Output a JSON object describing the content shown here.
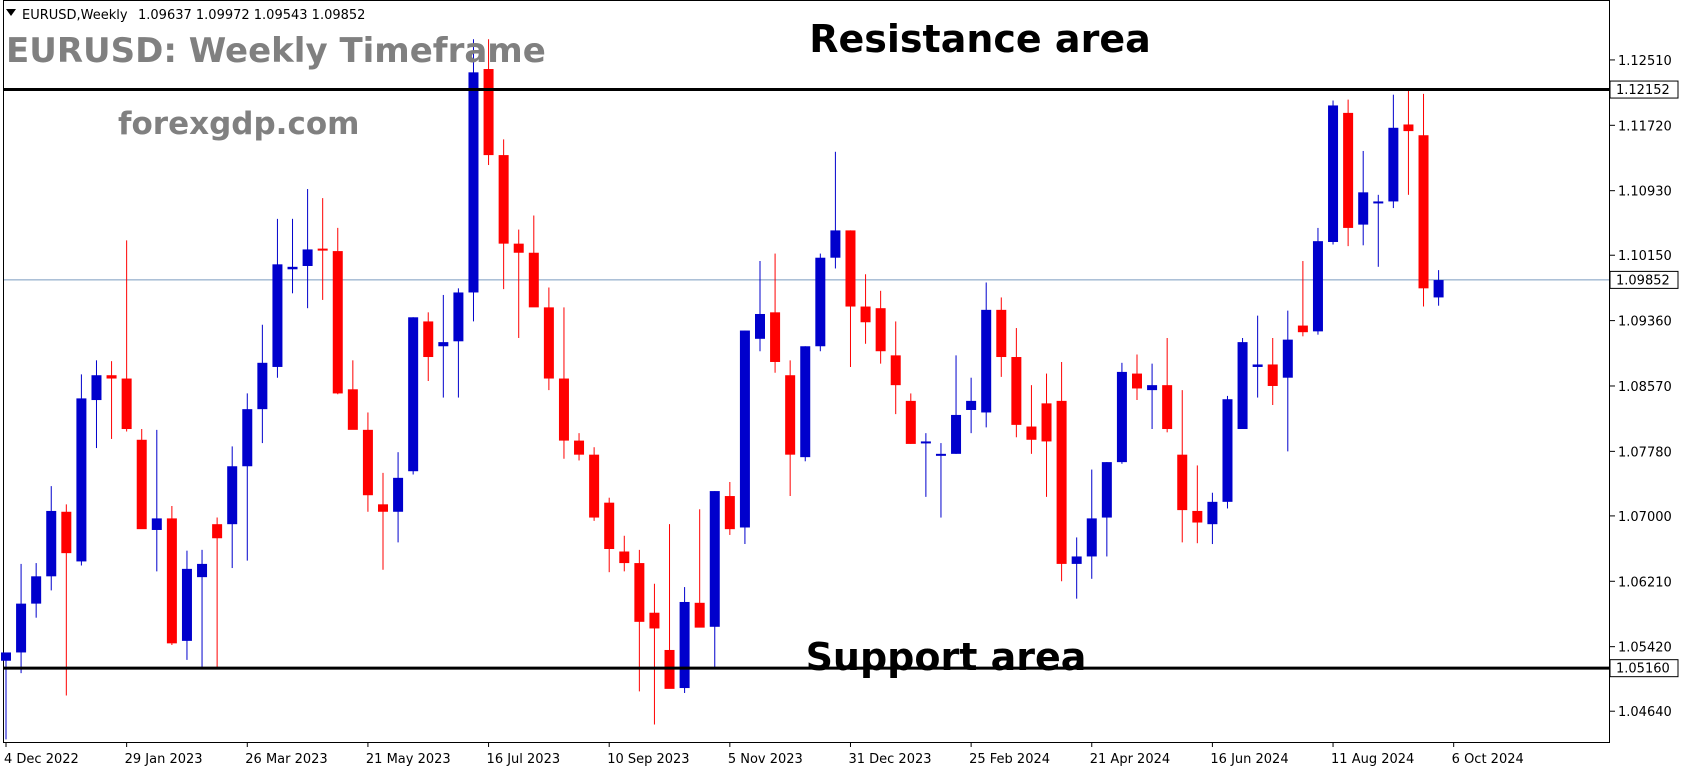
{
  "header": {
    "symbol_info": "EURUSD,Weekly",
    "ohlc_text": "1.09637 1.09972 1.09543 1.09852",
    "title": "EURUSD: Weekly Timeframe",
    "watermark": "forexgdp.com"
  },
  "annotations": {
    "resistance_label": "Resistance area",
    "support_label": "Support area"
  },
  "levels": {
    "resistance_value": "1.12152",
    "support_value": "1.05160",
    "current_value": "1.09852"
  },
  "colors": {
    "bull": "#0000cc",
    "bear": "#ff0000",
    "level_line": "#000000",
    "current_line": "#7a9bbf"
  },
  "chart_data": {
    "type": "candlestick",
    "title": "EURUSD: Weekly Timeframe",
    "symbol": "EURUSD",
    "timeframe": "Weekly",
    "ylim": [
      1.0428,
      1.1321
    ],
    "y_ticks": [
      "1.12510",
      "1.11720",
      "1.10930",
      "1.10150",
      "1.09360",
      "1.08570",
      "1.07780",
      "1.07000",
      "1.06210",
      "1.05420",
      "1.04640"
    ],
    "x_ticks": [
      {
        "label": "4 Dec 2022",
        "index": 0
      },
      {
        "label": "29 Jan 2023",
        "index": 8
      },
      {
        "label": "26 Mar 2023",
        "index": 16
      },
      {
        "label": "21 May 2023",
        "index": 24
      },
      {
        "label": "16 Jul 2023",
        "index": 32
      },
      {
        "label": "10 Sep 2023",
        "index": 40
      },
      {
        "label": "5 Nov 2023",
        "index": 48
      },
      {
        "label": "31 Dec 2023",
        "index": 56
      },
      {
        "label": "25 Feb 2024",
        "index": 64
      },
      {
        "label": "21 Apr 2024",
        "index": 72
      },
      {
        "label": "16 Jun 2024",
        "index": 80
      },
      {
        "label": "11 Aug 2024",
        "index": 88
      },
      {
        "label": "6 Oct 2024",
        "index": 96
      }
    ],
    "horizontal_levels": [
      {
        "name": "Resistance area",
        "value": 1.12152
      },
      {
        "name": "Support area",
        "value": 1.0516
      }
    ],
    "last_price": 1.09852,
    "candles": [
      {
        "o": 1.0525,
        "h": 1.0535,
        "l": 1.043,
        "c": 1.0535
      },
      {
        "o": 1.0535,
        "h": 1.0642,
        "l": 1.051,
        "c": 1.0594
      },
      {
        "o": 1.0594,
        "h": 1.0643,
        "l": 1.0577,
        "c": 1.0627
      },
      {
        "o": 1.0627,
        "h": 1.0736,
        "l": 1.061,
        "c": 1.0706
      },
      {
        "o": 1.0705,
        "h": 1.0714,
        "l": 1.0483,
        "c": 1.0655
      },
      {
        "o": 1.0645,
        "h": 1.0871,
        "l": 1.064,
        "c": 1.0842
      },
      {
        "o": 1.084,
        "h": 1.0888,
        "l": 1.0782,
        "c": 1.087
      },
      {
        "o": 1.087,
        "h": 1.0887,
        "l": 1.0793,
        "c": 1.0866
      },
      {
        "o": 1.0866,
        "h": 1.1033,
        "l": 1.0802,
        "c": 1.0805
      },
      {
        "o": 1.0792,
        "h": 1.0805,
        "l": 1.0685,
        "c": 1.0684
      },
      {
        "o": 1.0683,
        "h": 1.0804,
        "l": 1.0633,
        "c": 1.0697
      },
      {
        "o": 1.0697,
        "h": 1.0712,
        "l": 1.0544,
        "c": 1.0546
      },
      {
        "o": 1.0549,
        "h": 1.0658,
        "l": 1.0526,
        "c": 1.0636
      },
      {
        "o": 1.0626,
        "h": 1.0659,
        "l": 1.0517,
        "c": 1.0642
      },
      {
        "o": 1.069,
        "h": 1.0698,
        "l": 1.0517,
        "c": 1.0673
      },
      {
        "o": 1.069,
        "h": 1.0784,
        "l": 1.0637,
        "c": 1.076
      },
      {
        "o": 1.076,
        "h": 1.0848,
        "l": 1.0646,
        "c": 1.0829
      },
      {
        "o": 1.0829,
        "h": 1.0931,
        "l": 1.0788,
        "c": 1.0885
      },
      {
        "o": 1.088,
        "h": 1.1059,
        "l": 1.0867,
        "c": 1.1004
      },
      {
        "o": 1.0998,
        "h": 1.1059,
        "l": 1.0969,
        "c": 1.1001
      },
      {
        "o": 1.1002,
        "h": 1.1095,
        "l": 1.0951,
        "c": 1.1022
      },
      {
        "o": 1.1023,
        "h": 1.1084,
        "l": 1.0961,
        "c": 1.1021
      },
      {
        "o": 1.102,
        "h": 1.1048,
        "l": 1.0847,
        "c": 1.0848
      },
      {
        "o": 1.0853,
        "h": 1.0888,
        "l": 1.0805,
        "c": 1.0804
      },
      {
        "o": 1.0804,
        "h": 1.0825,
        "l": 1.0705,
        "c": 1.0725
      },
      {
        "o": 1.0714,
        "h": 1.0752,
        "l": 1.0635,
        "c": 1.0705
      },
      {
        "o": 1.0705,
        "h": 1.0777,
        "l": 1.0668,
        "c": 1.0746
      },
      {
        "o": 1.0754,
        "h": 1.094,
        "l": 1.075,
        "c": 1.094
      },
      {
        "o": 1.0935,
        "h": 1.0946,
        "l": 1.0863,
        "c": 1.0892
      },
      {
        "o": 1.0905,
        "h": 1.0967,
        "l": 1.0843,
        "c": 1.091
      },
      {
        "o": 1.0911,
        "h": 1.0975,
        "l": 1.0843,
        "c": 1.097
      },
      {
        "o": 1.097,
        "h": 1.1276,
        "l": 1.0935,
        "c": 1.1236
      },
      {
        "o": 1.124,
        "h": 1.1276,
        "l": 1.1124,
        "c": 1.1136
      },
      {
        "o": 1.1136,
        "h": 1.1155,
        "l": 1.0974,
        "c": 1.1029
      },
      {
        "o": 1.1029,
        "h": 1.1046,
        "l": 1.0915,
        "c": 1.1018
      },
      {
        "o": 1.1018,
        "h": 1.1063,
        "l": 1.0954,
        "c": 1.0952
      },
      {
        "o": 1.0952,
        "h": 1.0976,
        "l": 1.0852,
        "c": 1.0866
      },
      {
        "o": 1.0866,
        "h": 1.0952,
        "l": 1.0769,
        "c": 1.0791
      },
      {
        "o": 1.0791,
        "h": 1.08,
        "l": 1.0767,
        "c": 1.0774
      },
      {
        "o": 1.0774,
        "h": 1.0783,
        "l": 1.0694,
        "c": 1.0698
      },
      {
        "o": 1.0716,
        "h": 1.0722,
        "l": 1.0632,
        "c": 1.066
      },
      {
        "o": 1.0657,
        "h": 1.0676,
        "l": 1.0633,
        "c": 1.0643
      },
      {
        "o": 1.0643,
        "h": 1.0659,
        "l": 1.0488,
        "c": 1.0572
      },
      {
        "o": 1.0583,
        "h": 1.0618,
        "l": 1.0448,
        "c": 1.0564
      },
      {
        "o": 1.0538,
        "h": 1.069,
        "l": 1.0494,
        "c": 1.0491
      },
      {
        "o": 1.0492,
        "h": 1.0614,
        "l": 1.0486,
        "c": 1.0596
      },
      {
        "o": 1.0595,
        "h": 1.0708,
        "l": 1.0566,
        "c": 1.0565
      },
      {
        "o": 1.0566,
        "h": 1.073,
        "l": 1.0517,
        "c": 1.073
      },
      {
        "o": 1.0724,
        "h": 1.0741,
        "l": 1.0677,
        "c": 1.0684
      },
      {
        "o": 1.0686,
        "h": 1.0924,
        "l": 1.0666,
        "c": 1.0924
      },
      {
        "o": 1.0914,
        "h": 1.1008,
        "l": 1.0899,
        "c": 1.0944
      },
      {
        "o": 1.0946,
        "h": 1.1017,
        "l": 1.0873,
        "c": 1.0886
      },
      {
        "o": 1.087,
        "h": 1.0888,
        "l": 1.0724,
        "c": 1.0774
      },
      {
        "o": 1.0771,
        "h": 1.0905,
        "l": 1.0766,
        "c": 1.0905
      },
      {
        "o": 1.0905,
        "h": 1.1017,
        "l": 1.0899,
        "c": 1.1012
      },
      {
        "o": 1.1012,
        "h": 1.114,
        "l": 1.0999,
        "c": 1.1045
      },
      {
        "o": 1.1045,
        "h": 1.1045,
        "l": 1.088,
        "c": 1.0953
      },
      {
        "o": 1.0953,
        "h": 1.0992,
        "l": 1.0908,
        "c": 1.0934
      },
      {
        "o": 1.0951,
        "h": 1.0972,
        "l": 1.0884,
        "c": 1.0899
      },
      {
        "o": 1.0894,
        "h": 1.0935,
        "l": 1.0823,
        "c": 1.0858
      },
      {
        "o": 1.0839,
        "h": 1.0848,
        "l": 1.0787,
        "c": 1.0787
      },
      {
        "o": 1.079,
        "h": 1.08,
        "l": 1.0723,
        "c": 1.079
      },
      {
        "o": 1.0775,
        "h": 1.0788,
        "l": 1.0698,
        "c": 1.0775
      },
      {
        "o": 1.0775,
        "h": 1.0894,
        "l": 1.0775,
        "c": 1.0822
      },
      {
        "o": 1.0828,
        "h": 1.0867,
        "l": 1.08,
        "c": 1.0839
      },
      {
        "o": 1.0825,
        "h": 1.0982,
        "l": 1.0807,
        "c": 1.0949
      },
      {
        "o": 1.0949,
        "h": 1.0964,
        "l": 1.0868,
        "c": 1.0892
      },
      {
        "o": 1.0892,
        "h": 1.0927,
        "l": 1.0795,
        "c": 1.081
      },
      {
        "o": 1.0808,
        "h": 1.0858,
        "l": 1.0775,
        "c": 1.0792
      },
      {
        "o": 1.0836,
        "h": 1.0872,
        "l": 1.0723,
        "c": 1.079
      },
      {
        "o": 1.0839,
        "h": 1.0886,
        "l": 1.0621,
        "c": 1.0642
      },
      {
        "o": 1.0642,
        "h": 1.0674,
        "l": 1.06,
        "c": 1.0651
      },
      {
        "o": 1.0651,
        "h": 1.0756,
        "l": 1.0624,
        "c": 1.0697
      },
      {
        "o": 1.0698,
        "h": 1.0765,
        "l": 1.0651,
        "c": 1.0765
      },
      {
        "o": 1.0765,
        "h": 1.0885,
        "l": 1.0763,
        "c": 1.0874
      },
      {
        "o": 1.0872,
        "h": 1.0895,
        "l": 1.084,
        "c": 1.0854
      },
      {
        "o": 1.0852,
        "h": 1.0884,
        "l": 1.0805,
        "c": 1.0858
      },
      {
        "o": 1.0858,
        "h": 1.0915,
        "l": 1.0801,
        "c": 1.0805
      },
      {
        "o": 1.0774,
        "h": 1.0852,
        "l": 1.0668,
        "c": 1.0707
      },
      {
        "o": 1.0706,
        "h": 1.0761,
        "l": 1.0667,
        "c": 1.0692
      },
      {
        "o": 1.069,
        "h": 1.0728,
        "l": 1.0666,
        "c": 1.0717
      },
      {
        "o": 1.0717,
        "h": 1.0845,
        "l": 1.0709,
        "c": 1.0841
      },
      {
        "o": 1.0805,
        "h": 1.0915,
        "l": 1.0805,
        "c": 1.091
      },
      {
        "o": 1.088,
        "h": 1.0942,
        "l": 1.0843,
        "c": 1.0883
      },
      {
        "o": 1.0883,
        "h": 1.0915,
        "l": 1.0834,
        "c": 1.0857
      },
      {
        "o": 1.0867,
        "h": 1.0948,
        "l": 1.0778,
        "c": 1.0913
      },
      {
        "o": 1.093,
        "h": 1.1008,
        "l": 1.0917,
        "c": 1.0922
      },
      {
        "o": 1.0923,
        "h": 1.1048,
        "l": 1.0919,
        "c": 1.1032
      },
      {
        "o": 1.1031,
        "h": 1.1202,
        "l": 1.1028,
        "c": 1.1196
      },
      {
        "o": 1.1187,
        "h": 1.1203,
        "l": 1.1026,
        "c": 1.1048
      },
      {
        "o": 1.1052,
        "h": 1.1141,
        "l": 1.1027,
        "c": 1.1091
      },
      {
        "o": 1.1078,
        "h": 1.1088,
        "l": 1.1001,
        "c": 1.108
      },
      {
        "o": 1.108,
        "h": 1.1209,
        "l": 1.1072,
        "c": 1.1169
      },
      {
        "o": 1.1173,
        "h": 1.1214,
        "l": 1.1088,
        "c": 1.1165
      },
      {
        "o": 1.116,
        "h": 1.121,
        "l": 1.0953,
        "c": 1.0975
      },
      {
        "o": 1.0964,
        "h": 1.0997,
        "l": 1.0954,
        "c": 1.0985
      }
    ]
  }
}
